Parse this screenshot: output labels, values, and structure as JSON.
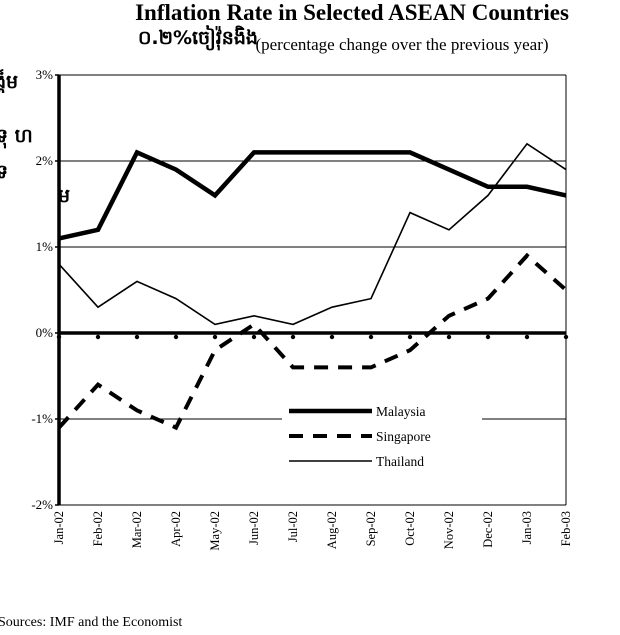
{
  "chart_data": {
    "type": "line",
    "title": "Inflation Rate in Selected ASEAN Countries",
    "subtitle": "(percentage change over the previous year)",
    "title_overlay_fragment": "០.២%ចៀវ៉ុនងិង",
    "left_edge_fragments": [
      "ង្គ៏ម",
      "ទុ ហ",
      "ទ",
      "ម"
    ],
    "xlabel": "",
    "ylabel": "",
    "categories": [
      "Jan-02",
      "Feb-02",
      "Mar-02",
      "Apr-02",
      "May-02",
      "Jun-02",
      "Jul-02",
      "Aug-02",
      "Sep-02",
      "Oct-02",
      "Nov-02",
      "Dec-02",
      "Jan-03",
      "Feb-03"
    ],
    "ylim": [
      -2,
      3
    ],
    "yticks": [
      -2,
      -1,
      0,
      1,
      2,
      3
    ],
    "ytick_labels": [
      "-2%",
      "-1%",
      "0%",
      "1%",
      "2%",
      "3%"
    ],
    "grid": true,
    "legend_position": "lower-center",
    "series": [
      {
        "name": "Malaysia",
        "style": "thick-solid",
        "values": [
          1.1,
          1.2,
          2.1,
          1.9,
          1.6,
          2.1,
          2.1,
          2.1,
          2.1,
          2.1,
          1.9,
          1.7,
          1.7,
          1.6
        ]
      },
      {
        "name": "Singapore",
        "style": "dashed",
        "values": [
          -1.1,
          -0.6,
          -0.9,
          -1.1,
          -0.2,
          0.1,
          -0.4,
          -0.4,
          -0.4,
          -0.2,
          0.2,
          0.4,
          0.9,
          0.5
        ]
      },
      {
        "name": "Thailand",
        "style": "thin-solid",
        "values": [
          0.8,
          0.3,
          0.6,
          0.4,
          0.1,
          0.2,
          0.1,
          0.3,
          0.4,
          1.4,
          1.2,
          1.6,
          2.2,
          1.9
        ]
      }
    ],
    "colors": {
      "line": "#000000",
      "grid": "#000000"
    }
  },
  "footer": {
    "source": "Sources: IMF and the Economist"
  }
}
